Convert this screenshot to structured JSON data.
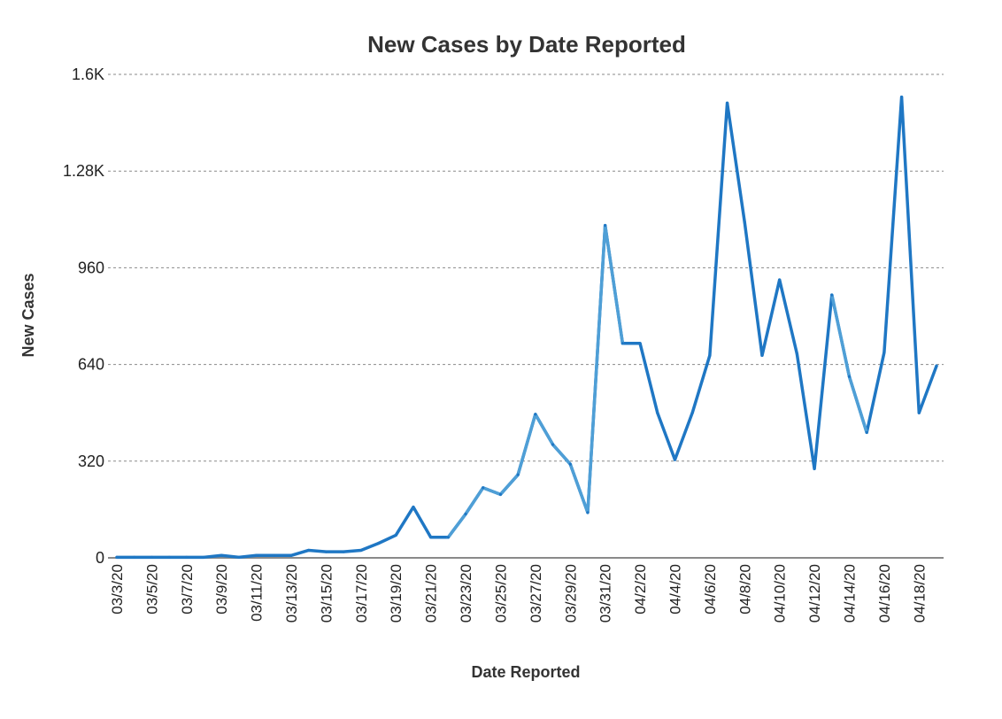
{
  "chart_data": {
    "type": "line",
    "title": "New Cases by Date Reported",
    "xlabel": "Date Reported",
    "ylabel": "New Cases",
    "ylim": [
      0,
      1600
    ],
    "yticks": [
      0,
      320,
      640,
      960,
      1280,
      1600
    ],
    "ytick_labels": [
      "0",
      "320",
      "640",
      "960",
      "1.28K",
      "1.6K"
    ],
    "x": [
      "03/3/20",
      "03/4/20",
      "03/5/20",
      "03/6/20",
      "03/7/20",
      "03/8/20",
      "03/9/20",
      "03/10/20",
      "03/11/20",
      "03/12/20",
      "03/13/20",
      "03/14/20",
      "03/15/20",
      "03/16/20",
      "03/17/20",
      "03/18/20",
      "03/19/20",
      "03/20/20",
      "03/21/20",
      "03/22/20",
      "03/23/20",
      "03/24/20",
      "03/25/20",
      "03/26/20",
      "03/27/20",
      "03/28/20",
      "03/29/20",
      "03/30/20",
      "03/31/20",
      "04/1/20",
      "04/2/20",
      "04/3/20",
      "04/4/20",
      "04/5/20",
      "04/6/20",
      "04/7/20",
      "04/8/20",
      "04/9/20",
      "04/10/20",
      "04/11/20",
      "04/12/20",
      "04/13/20",
      "04/14/20",
      "04/15/20",
      "04/16/20",
      "04/17/20",
      "04/18/20",
      "04/19/20"
    ],
    "xtick_labels": [
      "03/3/20",
      "03/5/20",
      "03/7/20",
      "03/9/20",
      "03/11/20",
      "03/13/20",
      "03/15/20",
      "03/17/20",
      "03/19/20",
      "03/21/20",
      "03/23/20",
      "03/25/20",
      "03/27/20",
      "03/29/20",
      "03/31/20",
      "04/2/20",
      "04/4/20",
      "04/6/20",
      "04/8/20",
      "04/10/20",
      "04/12/20",
      "04/14/20",
      "04/16/20",
      "04/18/20"
    ],
    "series": [
      {
        "values": [
          2,
          2,
          2,
          2,
          2,
          2,
          8,
          2,
          8,
          8,
          8,
          25,
          20,
          20,
          25,
          48,
          75,
          168,
          68,
          68,
          145,
          232,
          210,
          275,
          475,
          375,
          310,
          150,
          1100,
          710,
          710,
          480,
          325,
          480,
          670,
          1505,
          1110,
          670,
          920,
          675,
          295,
          870,
          600,
          415,
          680,
          1525,
          480,
          635
        ],
        "color": "#1f77c4"
      }
    ],
    "grid": true,
    "legend": "none",
    "colors": {
      "line": "#1f77c4",
      "line_light": "#4f9fd6",
      "grid": "#8a8a8a",
      "text": "#333333"
    }
  }
}
